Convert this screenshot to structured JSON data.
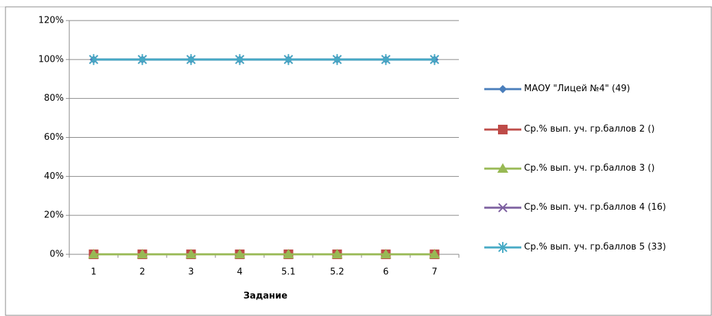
{
  "chart_data": {
    "type": "line",
    "x_label": "Задание",
    "categories": [
      "1",
      "2",
      "3",
      "4",
      "5.1",
      "5.2",
      "6",
      "7"
    ],
    "ylim": [
      0,
      120
    ],
    "yticks": [
      {
        "value": 0,
        "label": "0%"
      },
      {
        "value": 20,
        "label": "20%"
      },
      {
        "value": 40,
        "label": "40%"
      },
      {
        "value": 60,
        "label": "60%"
      },
      {
        "value": 80,
        "label": "80%"
      },
      {
        "value": 100,
        "label": "100%"
      },
      {
        "value": 120,
        "label": "120%"
      }
    ],
    "grid": true,
    "legend": "right",
    "series": [
      {
        "name": "МАОУ \"Лицей №4\" (49)",
        "color": "#4a7ebb",
        "marker": "diamond",
        "values": [
          100,
          100,
          100,
          100,
          100,
          100,
          100,
          100
        ]
      },
      {
        "name": "Ср.% вып. уч. гр.баллов 2 ()",
        "color": "#be4b48",
        "marker": "square",
        "values": [
          0,
          0,
          0,
          0,
          0,
          0,
          0,
          0
        ]
      },
      {
        "name": "Ср.% вып. уч. гр.баллов 3 ()",
        "color": "#98b954",
        "marker": "triangle",
        "values": [
          0,
          0,
          0,
          0,
          0,
          0,
          0,
          0
        ]
      },
      {
        "name": "Ср.% вып. уч. гр.баллов 4 (16)",
        "color": "#7d60a0",
        "marker": "x",
        "values": [
          100,
          100,
          100,
          100,
          100,
          100,
          100,
          100
        ]
      },
      {
        "name": "Ср.% вып. уч. гр.баллов 5 (33)",
        "color": "#46aac5",
        "marker": "star",
        "values": [
          100,
          100,
          100,
          100,
          100,
          100,
          100,
          100
        ]
      }
    ]
  }
}
